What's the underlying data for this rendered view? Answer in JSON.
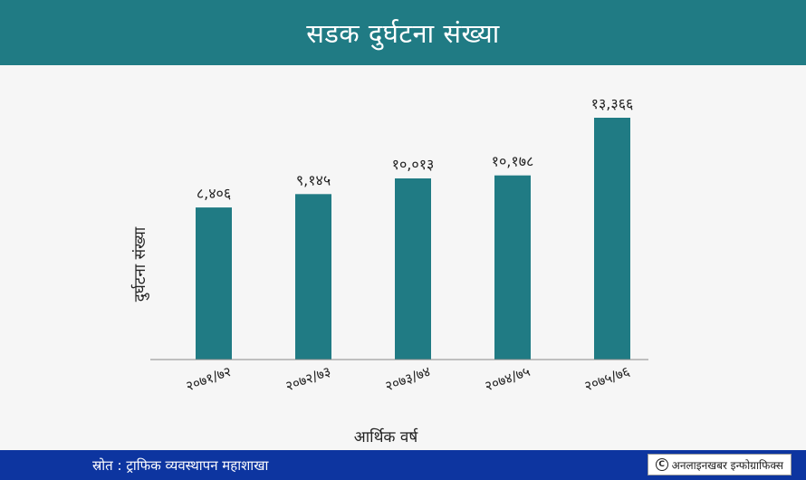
{
  "header": {
    "title": "सडक दुर्घटना संख्या"
  },
  "footer": {
    "source": "स्रोत : ट्राफिक व्यवस्थापन महाशाखा",
    "credit": "अनलाइनखबर इन्फोग्राफिक्स",
    "credit_icon": "copyright-icon"
  },
  "colors": {
    "header_bg": "#207b84",
    "bar": "#207b84",
    "footer_bg": "#0d35a0"
  },
  "chart_data": {
    "type": "bar",
    "title": "सडक दुर्घटना संख्या",
    "xlabel": "आर्थिक वर्ष",
    "ylabel": "दुर्घटना संख्या",
    "categories": [
      "२०७१/७२",
      "२०७२/७३",
      "२०७३/७४",
      "२०७४/७५",
      "२०७५/७६"
    ],
    "values": [
      8406,
      9145,
      10013,
      10178,
      13366
    ],
    "value_labels": [
      "८,४०६",
      "९,१४५",
      "१०,०१३",
      "१०,१७८",
      "१३,३६६"
    ],
    "ylim": [
      0,
      13366
    ],
    "grid": false,
    "legend": "none"
  }
}
